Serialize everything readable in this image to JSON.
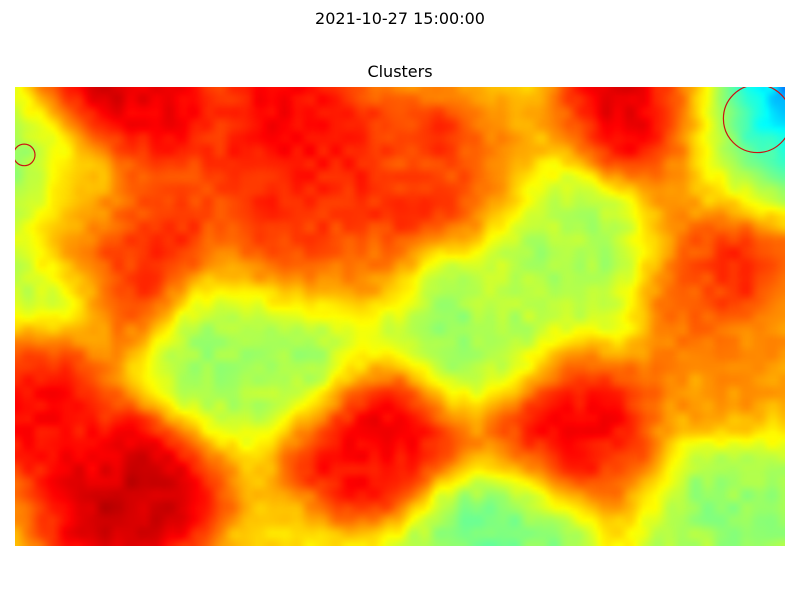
{
  "figure": {
    "suptitle": "2021-10-27 15:00:00"
  },
  "chart_data": {
    "type": "heatmap",
    "title": "Clusters",
    "xlabel": "",
    "ylabel": "",
    "colormap": "jet",
    "colormap_stops": [
      "#000080",
      "#0000ff",
      "#00ffff",
      "#80ff80",
      "#ffff00",
      "#ff8000",
      "#ff0000",
      "#800000"
    ],
    "grid": false,
    "axes_visible": false,
    "field_min": 0.0,
    "field_max": 1.0,
    "background_level": 0.58,
    "hotspots": [
      {
        "x": 0.13,
        "y": 0.02,
        "level": 0.93
      },
      {
        "x": 0.07,
        "y": 0.3,
        "level": 0.7
      },
      {
        "x": 0.35,
        "y": 0.1,
        "level": 0.88
      },
      {
        "x": 0.52,
        "y": 0.18,
        "level": 0.82
      },
      {
        "x": 0.38,
        "y": 0.38,
        "level": 0.84
      },
      {
        "x": 0.14,
        "y": 0.38,
        "level": 0.9
      },
      {
        "x": 0.84,
        "y": 0.05,
        "level": 0.95
      },
      {
        "x": 0.9,
        "y": 0.38,
        "level": 0.84
      },
      {
        "x": 0.01,
        "y": 0.65,
        "level": 0.9
      },
      {
        "x": 0.47,
        "y": 0.76,
        "level": 0.91
      },
      {
        "x": 0.72,
        "y": 0.74,
        "level": 0.89
      },
      {
        "x": 0.14,
        "y": 0.88,
        "level": 0.95
      },
      {
        "x": 0.95,
        "y": 0.63,
        "level": 0.72
      },
      {
        "x": 0.99,
        "y": 0.01,
        "level": 0.1
      },
      {
        "x": 0.95,
        "y": 0.12,
        "level": 0.42
      },
      {
        "x": 0.01,
        "y": 0.18,
        "level": 0.4
      },
      {
        "x": 0.75,
        "y": 0.36,
        "level": 0.45
      },
      {
        "x": 0.03,
        "y": 0.42,
        "level": 0.4
      },
      {
        "x": 0.38,
        "y": 0.55,
        "level": 0.44
      },
      {
        "x": 0.6,
        "y": 0.55,
        "level": 0.45
      },
      {
        "x": 0.28,
        "y": 0.58,
        "level": 0.42
      },
      {
        "x": 0.95,
        "y": 0.9,
        "level": 0.44
      },
      {
        "x": 0.62,
        "y": 0.98,
        "level": 0.4
      }
    ],
    "cluster_markers": [
      {
        "x": 0.012,
        "y": 0.148,
        "r": 0.014,
        "color": "#cc1111"
      },
      {
        "x": 0.964,
        "y": 0.069,
        "r": 0.044,
        "color": "#cc1111"
      }
    ]
  }
}
